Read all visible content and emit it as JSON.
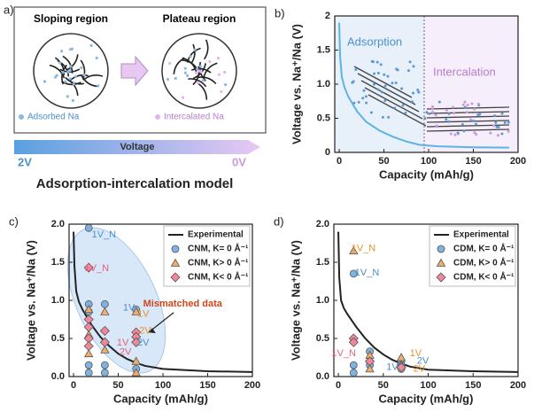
{
  "diagram": {
    "label": "a)",
    "left_title": "Sloping region",
    "right_title": "Plateau region",
    "legend_left": "Adsorbed Na",
    "legend_right": "Intercalated Na",
    "scale_start": "2V",
    "scale_name": "Voltage",
    "scale_end": "0V",
    "caption": "Adsorption-intercalation model"
  },
  "chart_data": [
    {
      "type": "line",
      "label": "b)",
      "xlabel": "Capacity (mAh/g)",
      "ylabel": "Voltage vs. Na⁺/Na (V)",
      "xlim": [
        -5,
        200
      ],
      "ylim": [
        0,
        2
      ],
      "xticks": [
        0,
        50,
        100,
        150,
        200
      ],
      "yticks": [
        0,
        0.5,
        {
          "value": 1,
          "label": "1.0"
        },
        1.5,
        2
      ],
      "regions": [
        {
          "name": "Adsorption",
          "xlim": [
            -5,
            95
          ],
          "color": "#e8f0fa",
          "text_color": "#4a90d0"
        },
        {
          "name": "Intercalation",
          "xlim": [
            95,
            200
          ],
          "color": "#f6eefa",
          "text_color": "#b77cd0"
        }
      ],
      "series": [
        {
          "marker": "line",
          "color": "#5ab4e6",
          "x": [
            0,
            1,
            3,
            6,
            10,
            20,
            30,
            45,
            60,
            75,
            90,
            110,
            150,
            190
          ],
          "values": [
            1.9,
            1.4,
            1.1,
            0.95,
            0.82,
            0.6,
            0.45,
            0.32,
            0.23,
            0.16,
            0.11,
            0.09,
            0.075,
            0.07
          ]
        }
      ]
    },
    {
      "type": "scatter",
      "label": "c)",
      "xlabel": "Capacity (mAh/g)",
      "ylabel": "Voltage vs. Na⁺/Na (V)",
      "xlim": [
        -5,
        200
      ],
      "ylim": [
        0,
        2
      ],
      "xticks": [
        0,
        50,
        100,
        150,
        200
      ],
      "yticks": [
        {
          "value": 0,
          "label": "0.0"
        },
        0.5,
        {
          "value": 1,
          "label": "1.0"
        },
        1.5,
        {
          "value": 2,
          "label": "2.0"
        }
      ],
      "series": [
        {
          "name": "Experimental",
          "marker": "line",
          "color": "#222222",
          "x": [
            0,
            1,
            3,
            6,
            10,
            20,
            30,
            40,
            50,
            60,
            70,
            80,
            100,
            150,
            200
          ],
          "values": [
            1.9,
            1.45,
            1.12,
            0.98,
            0.88,
            0.68,
            0.52,
            0.4,
            0.3,
            0.23,
            0.18,
            0.14,
            0.1,
            0.07,
            0.06
          ]
        },
        {
          "name": "CNM, K= 0 Å⁻¹",
          "marker": "circle",
          "color": "#7fb2e0",
          "x": [
            17,
            17,
            17,
            17,
            17,
            35,
            35,
            35,
            70,
            70
          ],
          "values": [
            1.95,
            0.95,
            0.85,
            0.15,
            0.05,
            0.95,
            0.15,
            0.05,
            0.88,
            0.1
          ]
        },
        {
          "name": "CNM, K> 0 Å⁻¹",
          "marker": "triangle",
          "color": "#f2ad6a",
          "x": [
            17,
            17,
            17,
            35,
            35,
            70,
            70,
            70
          ],
          "values": [
            0.88,
            0.55,
            0.3,
            0.85,
            0.35,
            0.85,
            0.2,
            0.05
          ]
        },
        {
          "name": "CNM, K< 0 Å⁻¹",
          "marker": "diamond",
          "color": "#f0879a",
          "x": [
            17,
            17,
            17,
            17,
            17,
            35,
            35,
            70,
            70,
            70
          ],
          "values": [
            1.43,
            0.75,
            0.65,
            0.5,
            0.4,
            0.6,
            0.45,
            0.58,
            0.52,
            0.45
          ]
        }
      ],
      "annotations": [
        {
          "text": "1V_N",
          "color": "#4a90d0"
        },
        {
          "text": "1V_N",
          "color": "#e8607a"
        },
        {
          "text": "Mismatched data",
          "color": "#d0451b"
        },
        {
          "text": "1V",
          "color": "#4a90d0"
        },
        {
          "text": "1V",
          "color": "#e8902a"
        },
        {
          "text": "2V",
          "color": "#e8902a"
        },
        {
          "text": "1V",
          "color": "#e8607a"
        },
        {
          "text": "2V",
          "color": "#e8607a"
        },
        {
          "text": "2V",
          "color": "#4a90d0"
        }
      ],
      "legend": "upper right"
    },
    {
      "type": "scatter",
      "label": "d)",
      "xlabel": "Capacity (mAh/g)",
      "ylabel": "Voltage vs. Na⁺/Na (V)",
      "xlim": [
        -5,
        200
      ],
      "ylim": [
        0,
        2
      ],
      "xticks": [
        0,
        50,
        100,
        150,
        200
      ],
      "yticks": [
        {
          "value": 0,
          "label": "0.0"
        },
        0.5,
        {
          "value": 1,
          "label": "1.0"
        },
        1.5,
        {
          "value": 2,
          "label": "2.0"
        }
      ],
      "series": [
        {
          "name": "Experimental",
          "marker": "line",
          "color": "#222222",
          "x": [
            0,
            1,
            3,
            6,
            10,
            20,
            30,
            40,
            50,
            60,
            70,
            80,
            100,
            150,
            200
          ],
          "values": [
            1.9,
            1.3,
            1.0,
            0.9,
            0.82,
            0.65,
            0.5,
            0.38,
            0.29,
            0.22,
            0.17,
            0.13,
            0.09,
            0.07,
            0.06
          ]
        },
        {
          "name": "CDM, K= 0 Å⁻¹",
          "marker": "circle",
          "color": "#7fb2e0",
          "x": [
            17,
            17,
            17,
            35,
            35,
            70,
            70,
            70
          ],
          "values": [
            1.35,
            0.15,
            0.05,
            0.33,
            0.15,
            0.2,
            0.15,
            0.1
          ]
        },
        {
          "name": "CDM, K> 0 Å⁻¹",
          "marker": "triangle",
          "color": "#f2ad6a",
          "x": [
            17,
            35,
            35,
            70,
            70
          ],
          "values": [
            1.65,
            0.28,
            0.1,
            0.25,
            0.15
          ]
        },
        {
          "name": "CDM, K< 0 Å⁻¹",
          "marker": "diamond",
          "color": "#f0879a",
          "x": [
            17,
            17,
            35,
            70
          ],
          "values": [
            0.5,
            0.45,
            0.2,
            0.12
          ]
        }
      ],
      "annotations": [
        {
          "text": "1V_N",
          "color": "#e8902a"
        },
        {
          "text": "1V_N",
          "color": "#4a90d0"
        },
        {
          "text": "1V_N",
          "color": "#e8607a"
        },
        {
          "text": "1V",
          "color": "#e8902a"
        },
        {
          "text": "2V",
          "color": "#e8902a"
        },
        {
          "text": "1V",
          "color": "#4a90d0"
        },
        {
          "text": "2V",
          "color": "#4a90d0"
        }
      ],
      "legend": "upper right"
    }
  ]
}
